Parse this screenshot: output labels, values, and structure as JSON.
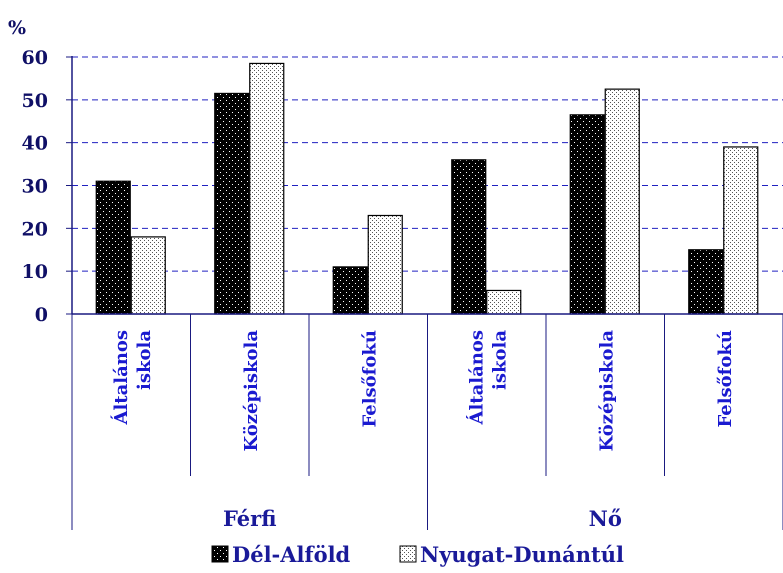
{
  "chart_data": {
    "type": "bar",
    "ylabel": "%",
    "ylim": [
      0,
      60
    ],
    "yticks": [
      "0",
      "10",
      "20",
      "30",
      "40",
      "50",
      "60"
    ],
    "grid": true,
    "legend_position": "bottom",
    "groups": [
      {
        "label": "Férfi",
        "categories": [
          [
            "Általános",
            "iskola"
          ],
          [
            "Középiskola"
          ],
          [
            "Felsőfokú"
          ]
        ]
      },
      {
        "label": "Nő",
        "categories": [
          [
            "Általános",
            "iskola"
          ],
          [
            "Középiskola"
          ],
          [
            "Felsőfokú"
          ]
        ]
      }
    ],
    "series": [
      {
        "name": "Dél-Alföld",
        "color": "#000000",
        "values": [
          31,
          51.5,
          11,
          36,
          46.5,
          15
        ]
      },
      {
        "name": "Nyugat-Dunántúl",
        "color": "#e8e8e8",
        "values": [
          18,
          58.5,
          23,
          5.5,
          52.5,
          39
        ]
      }
    ]
  }
}
